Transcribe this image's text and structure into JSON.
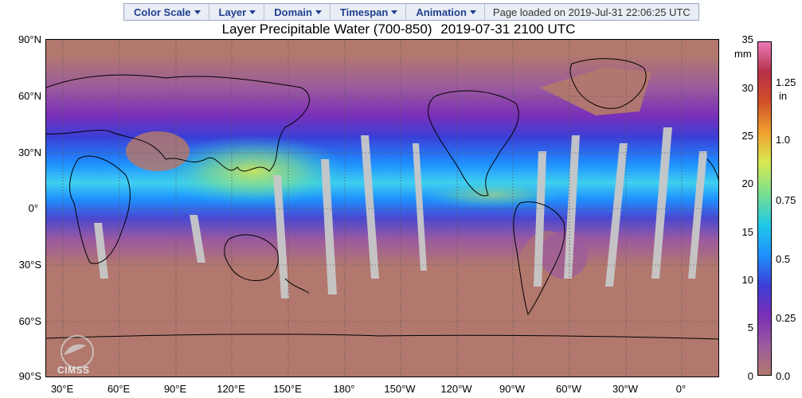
{
  "menu": {
    "items": [
      {
        "label": "Color Scale"
      },
      {
        "label": "Layer"
      },
      {
        "label": "Domain"
      },
      {
        "label": "Timespan"
      },
      {
        "label": "Animation"
      }
    ],
    "status": "Page loaded on 2019-Jul-31 22:06:25 UTC"
  },
  "map": {
    "title": "Layer Precipitable Water (700-850)",
    "datetime": "2019-07-31 2100 UTC",
    "lat_labels": [
      "90°N",
      "60°N",
      "30°N",
      "0°",
      "30°S",
      "60°S",
      "90°S"
    ],
    "lon_labels": [
      "30°E",
      "60°E",
      "90°E",
      "120°E",
      "150°E",
      "180°",
      "150°W",
      "120°W",
      "90°W",
      "60°W",
      "30°W",
      "0°"
    ],
    "logo_text": "CIMSS"
  },
  "colorbar": {
    "unit_left": "mm",
    "unit_right": "in",
    "ticks_mm": [
      "35",
      "30",
      "25",
      "20",
      "15",
      "10",
      "5",
      "0"
    ],
    "ticks_in": [
      "1.25",
      "1.0",
      "0.75",
      "0.5",
      "0.25",
      "0.0"
    ],
    "colors": [
      "#b2786d",
      "#9b5a9e",
      "#7a2fb8",
      "#3b3fd6",
      "#1e90ff",
      "#1fc8e8",
      "#7fe08a",
      "#d8e850",
      "#f0a030",
      "#d05028",
      "#b83048",
      "#e87ab8"
    ]
  }
}
